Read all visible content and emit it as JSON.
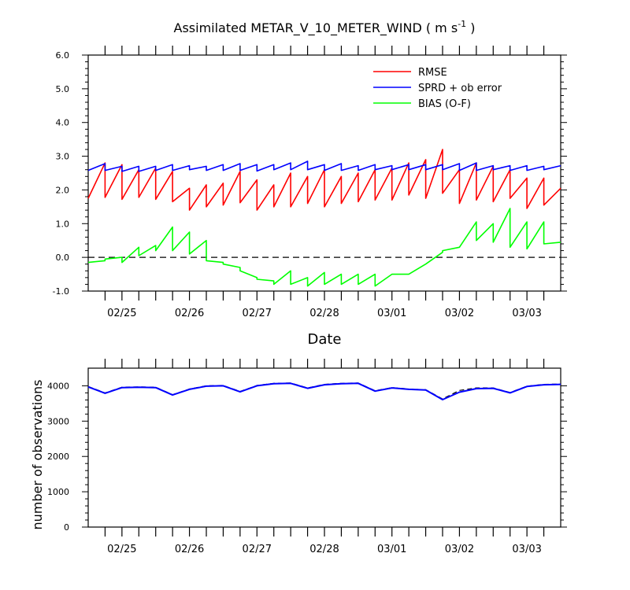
{
  "colors": {
    "rmse": "#ff0000",
    "sprd": "#0000ff",
    "bias": "#00ff00",
    "obs_used": "#0000ff",
    "obs_possible": "#000000",
    "zero_line": "#000000"
  },
  "chart_data": [
    {
      "type": "line",
      "title_main": "Assimilated METAR_V_10_METER_WIND ( m s",
      "title_sup": "-1",
      "title_end": " )",
      "xlabel": "Date",
      "ylabel": "",
      "ylim": [
        -1.0,
        6.0
      ],
      "yticks": [
        "-1.0",
        "0.0",
        "1.0",
        "2.0",
        "3.0",
        "4.0",
        "5.0",
        "6.0"
      ],
      "x_tick_labels": [
        "02/25",
        "02/26",
        "02/27",
        "02/28",
        "03/01",
        "03/02",
        "03/03"
      ],
      "x_unit": "hours",
      "xlim": [
        0,
        168
      ],
      "reference_line": 0.0,
      "legend_placement": "top-right",
      "legend": [
        "RMSE",
        "SPRD + ob error",
        "BIAS (O-F)"
      ],
      "series": [
        {
          "name": "RMSE",
          "color_key": "rmse",
          "style": "sawtooth",
          "x": [
            0,
            6,
            12,
            18,
            24,
            30,
            36,
            42,
            48,
            54,
            60,
            66,
            72,
            78,
            84,
            90,
            96,
            102,
            108,
            114,
            120,
            126,
            132,
            138,
            144,
            150,
            156,
            162,
            168
          ],
          "start": [
            1.75,
            1.78,
            1.72,
            1.78,
            1.72,
            1.65,
            1.4,
            1.5,
            1.55,
            1.62,
            1.4,
            1.5,
            1.5,
            1.6,
            1.5,
            1.6,
            1.65,
            1.7,
            1.7,
            1.85,
            1.75,
            1.9,
            1.6,
            1.7,
            1.65,
            1.75,
            1.45,
            1.55,
            1.6
          ],
          "end": [
            2.8,
            2.75,
            2.6,
            2.65,
            2.55,
            2.05,
            2.15,
            2.2,
            2.55,
            2.3,
            2.15,
            2.5,
            2.4,
            2.6,
            2.4,
            2.5,
            2.6,
            2.65,
            2.8,
            2.9,
            3.2,
            2.6,
            2.8,
            2.7,
            2.6,
            2.35,
            2.35,
            2.05,
            2.05
          ]
        },
        {
          "name": "SPRD + ob error",
          "color_key": "sprd",
          "style": "sawtooth",
          "x": [
            0,
            6,
            12,
            18,
            24,
            30,
            36,
            42,
            48,
            54,
            60,
            66,
            72,
            78,
            84,
            90,
            96,
            102,
            108,
            114,
            120,
            126,
            132,
            138,
            144,
            150,
            156,
            162,
            168
          ],
          "start": [
            2.58,
            2.58,
            2.55,
            2.55,
            2.58,
            2.58,
            2.6,
            2.58,
            2.58,
            2.58,
            2.56,
            2.6,
            2.6,
            2.6,
            2.58,
            2.58,
            2.58,
            2.6,
            2.6,
            2.6,
            2.6,
            2.6,
            2.58,
            2.58,
            2.6,
            2.58,
            2.58,
            2.6,
            2.62
          ],
          "end": [
            2.78,
            2.7,
            2.7,
            2.7,
            2.75,
            2.72,
            2.7,
            2.75,
            2.78,
            2.75,
            2.75,
            2.8,
            2.85,
            2.75,
            2.78,
            2.72,
            2.75,
            2.72,
            2.75,
            2.75,
            2.75,
            2.78,
            2.8,
            2.72,
            2.72,
            2.72,
            2.7,
            2.72,
            2.72
          ]
        },
        {
          "name": "BIAS (O-F)",
          "color_key": "bias",
          "style": "sawtooth",
          "x": [
            0,
            6,
            12,
            18,
            24,
            30,
            36,
            42,
            48,
            54,
            60,
            66,
            72,
            78,
            84,
            90,
            96,
            102,
            108,
            114,
            120,
            126,
            132,
            138,
            144,
            150,
            156,
            162,
            168
          ],
          "start": [
            -0.15,
            -0.05,
            -0.15,
            0.05,
            0.2,
            0.2,
            0.1,
            -0.1,
            -0.2,
            -0.4,
            -0.65,
            -0.8,
            -0.8,
            -0.85,
            -0.8,
            -0.8,
            -0.8,
            -0.85,
            -0.5,
            -0.5,
            -0.2,
            0.2,
            0.3,
            0.5,
            0.45,
            0.3,
            0.25,
            0.4,
            0.45
          ],
          "end": [
            -0.1,
            0.0,
            0.3,
            0.35,
            0.9,
            0.75,
            0.5,
            -0.15,
            -0.3,
            -0.6,
            -0.7,
            -0.4,
            -0.6,
            -0.45,
            -0.5,
            -0.5,
            -0.5,
            -0.5,
            -0.5,
            -0.2,
            0.15,
            0.3,
            1.05,
            1.0,
            1.45,
            1.05,
            1.05,
            0.45,
            0.45
          ]
        }
      ]
    },
    {
      "type": "line",
      "title": "",
      "xlabel": "",
      "ylabel": "number of observations",
      "ylim": [
        0,
        4500
      ],
      "yticks": [
        "0",
        "1000",
        "2000",
        "3000",
        "4000"
      ],
      "x_tick_labels": [
        "02/25",
        "02/26",
        "02/27",
        "02/28",
        "03/01",
        "03/02",
        "03/03"
      ],
      "x_unit": "hours",
      "xlim": [
        0,
        168
      ],
      "series": [
        {
          "name": "",
          "color_key": "obs_used",
          "dash": false,
          "x": [
            0,
            6,
            12,
            18,
            24,
            30,
            36,
            42,
            48,
            54,
            60,
            66,
            72,
            78,
            84,
            90,
            96,
            102,
            108,
            114,
            120,
            126,
            132,
            138,
            144,
            150,
            156,
            162,
            168
          ],
          "values": [
            3970,
            3790,
            3950,
            3960,
            3950,
            3740,
            3900,
            3990,
            4000,
            3830,
            4000,
            4060,
            4070,
            3930,
            4030,
            4060,
            4070,
            3850,
            3940,
            3900,
            3880,
            3610,
            3820,
            3920,
            3930,
            3800,
            3980,
            4030,
            4040
          ]
        },
        {
          "name": "",
          "color_key": "obs_possible",
          "dash": true,
          "x": [
            0,
            6,
            12,
            18,
            24,
            30,
            36,
            42,
            48,
            54,
            60,
            66,
            72,
            78,
            84,
            90,
            96,
            102,
            108,
            114,
            120,
            126,
            132,
            138,
            144,
            150,
            156,
            162,
            168
          ],
          "values": [
            3980,
            3800,
            3960,
            3970,
            3960,
            3750,
            3910,
            4000,
            4010,
            3840,
            4010,
            4070,
            4080,
            3940,
            4040,
            4070,
            4080,
            3860,
            3950,
            3910,
            3890,
            3630,
            3870,
            3940,
            3940,
            3810,
            3990,
            4040,
            4050
          ]
        }
      ]
    }
  ]
}
